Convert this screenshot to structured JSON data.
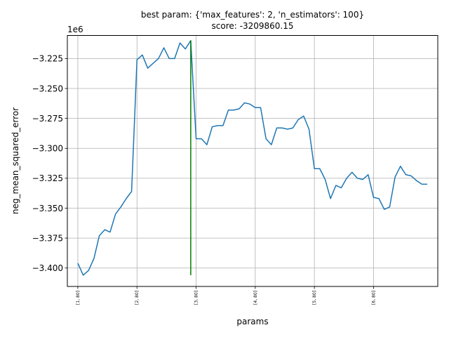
{
  "chart_data": {
    "type": "line",
    "title_line1": "best param: {'max_features': 2, 'n_estimators': 100}",
    "title_line2": "score: -3209860.15",
    "xlabel": "params",
    "ylabel": "neg_mean_squared_error",
    "y_offset_label": "1e6",
    "grid": true,
    "x_range": [
      -1.95,
      66.95
    ],
    "ylim": [
      -3.4154,
      -3.2057
    ],
    "x_ticks": [
      {
        "x": 0,
        "label": "[1, 80]"
      },
      {
        "x": 11,
        "label": "[2, 80]"
      },
      {
        "x": 22,
        "label": "[3, 80]"
      },
      {
        "x": 33,
        "label": "[4, 80]"
      },
      {
        "x": 44,
        "label": "[5, 80]"
      },
      {
        "x": 55,
        "label": "[6, 80]"
      }
    ],
    "y_ticks": [
      {
        "value": -3.225,
        "label": "−3.225"
      },
      {
        "value": -3.25,
        "label": "−3.250"
      },
      {
        "value": -3.275,
        "label": "−3.275"
      },
      {
        "value": -3.3,
        "label": "−3.300"
      },
      {
        "value": -3.325,
        "label": "−3.325"
      },
      {
        "value": -3.35,
        "label": "−3.350"
      },
      {
        "value": -3.375,
        "label": "−3.375"
      },
      {
        "value": -3.4,
        "label": "−3.400"
      }
    ],
    "series": [
      {
        "color": "#1f77b4",
        "values": [
          -3.396,
          -3.406,
          -3.402,
          -3.392,
          -3.373,
          -3.368,
          -3.37,
          -3.355,
          -3.349,
          -3.342,
          -3.336,
          -3.226,
          -3.222,
          -3.233,
          -3.229,
          -3.225,
          -3.216,
          -3.225,
          -3.225,
          -3.212,
          -3.217,
          -3.21,
          -3.292,
          -3.292,
          -3.297,
          -3.282,
          -3.281,
          -3.281,
          -3.268,
          -3.268,
          -3.267,
          -3.262,
          -3.263,
          -3.266,
          -3.266,
          -3.292,
          -3.297,
          -3.283,
          -3.283,
          -3.284,
          -3.283,
          -3.276,
          -3.273,
          -3.284,
          -3.317,
          -3.317,
          -3.326,
          -3.342,
          -3.331,
          -3.333,
          -3.325,
          -3.32,
          -3.325,
          -3.326,
          -3.322,
          -3.341,
          -3.342,
          -3.351,
          -3.349,
          -3.324,
          -3.315,
          -3.322,
          -3.323,
          -3.327,
          -3.33,
          -3.33
        ]
      }
    ],
    "best_marker": {
      "x": 21,
      "y_top": -3.20986,
      "y_bottom": -3.406,
      "color": "#008000"
    }
  }
}
